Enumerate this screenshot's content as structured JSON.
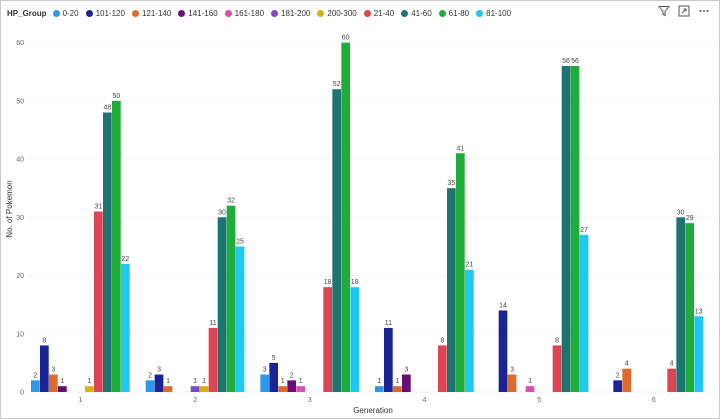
{
  "chart_data": {
    "type": "bar",
    "legend_title": "HP_Group",
    "xlabel": "Generation",
    "ylabel": "No. of Pokemon",
    "ylim": [
      0,
      62
    ],
    "yticks": [
      0,
      10,
      20,
      30,
      40,
      50,
      60
    ],
    "categories": [
      "1",
      "2",
      "3",
      "4",
      "5",
      "6"
    ],
    "series": [
      {
        "name": "0-20",
        "color": "#2e97e8",
        "values": [
          2,
          2,
          3,
          1,
          null,
          null
        ]
      },
      {
        "name": "101-120",
        "color": "#1a2494",
        "values": [
          8,
          3,
          5,
          11,
          14,
          2
        ]
      },
      {
        "name": "121-140",
        "color": "#e06a2c",
        "values": [
          3,
          1,
          1,
          1,
          3,
          4
        ]
      },
      {
        "name": "141-160",
        "color": "#6a0e76",
        "values": [
          1,
          null,
          2,
          3,
          null,
          null
        ]
      },
      {
        "name": "161-180",
        "color": "#d84fb6",
        "values": [
          null,
          null,
          1,
          null,
          1,
          null
        ]
      },
      {
        "name": "181-200",
        "color": "#7c4bc8",
        "values": [
          null,
          1,
          null,
          null,
          null,
          null
        ]
      },
      {
        "name": "200-300",
        "color": "#d8b20c",
        "values": [
          1,
          1,
          null,
          null,
          null,
          null
        ]
      },
      {
        "name": "21-40",
        "color": "#dc4553",
        "values": [
          31,
          11,
          18,
          8,
          8,
          4
        ]
      },
      {
        "name": "41-60",
        "color": "#1e7470",
        "values": [
          48,
          30,
          52,
          35,
          56,
          30
        ]
      },
      {
        "name": "61-80",
        "color": "#1fad3a",
        "values": [
          50,
          32,
          60,
          41,
          56,
          29
        ]
      },
      {
        "name": "81-100",
        "color": "#1ec8f0",
        "values": [
          22,
          25,
          18,
          21,
          27,
          13
        ]
      }
    ]
  },
  "icons": {
    "filter": "filter-icon",
    "expand": "expand-icon",
    "more": "more-options-icon"
  }
}
